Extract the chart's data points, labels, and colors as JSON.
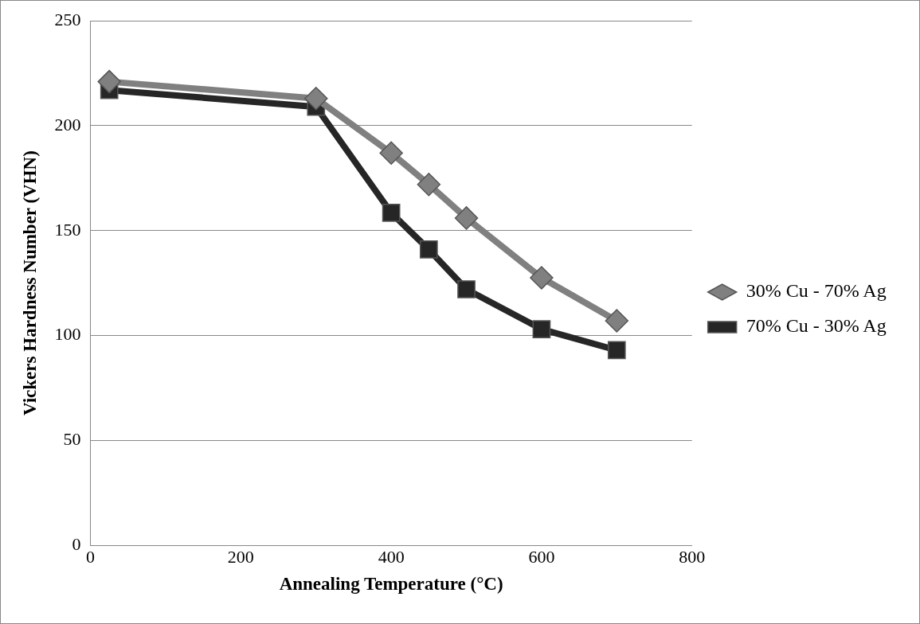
{
  "chart_data": {
    "type": "line",
    "xlabel": "Annealing Temperature (°C)",
    "ylabel": "Vickers Hardness Number (VHN)",
    "x": [
      25,
      300,
      400,
      450,
      500,
      600,
      700
    ],
    "series": [
      {
        "name": "30% Cu - 70% Ag",
        "color": "#808080",
        "marker": "diamond",
        "values": [
          221,
          213,
          187,
          172,
          156,
          127.5,
          107
        ]
      },
      {
        "name": "70% Cu - 30% Ag",
        "color": "#262626",
        "marker": "square",
        "values": [
          217,
          209,
          158.5,
          141,
          122,
          103,
          93
        ]
      }
    ],
    "xlim": [
      0,
      800
    ],
    "xticks": [
      0,
      200,
      400,
      600,
      800
    ],
    "ylim": [
      0,
      250
    ],
    "yticks": [
      0,
      50,
      100,
      150,
      200,
      250
    ],
    "grid": "y",
    "legend": "right",
    "line_style": "solid"
  }
}
